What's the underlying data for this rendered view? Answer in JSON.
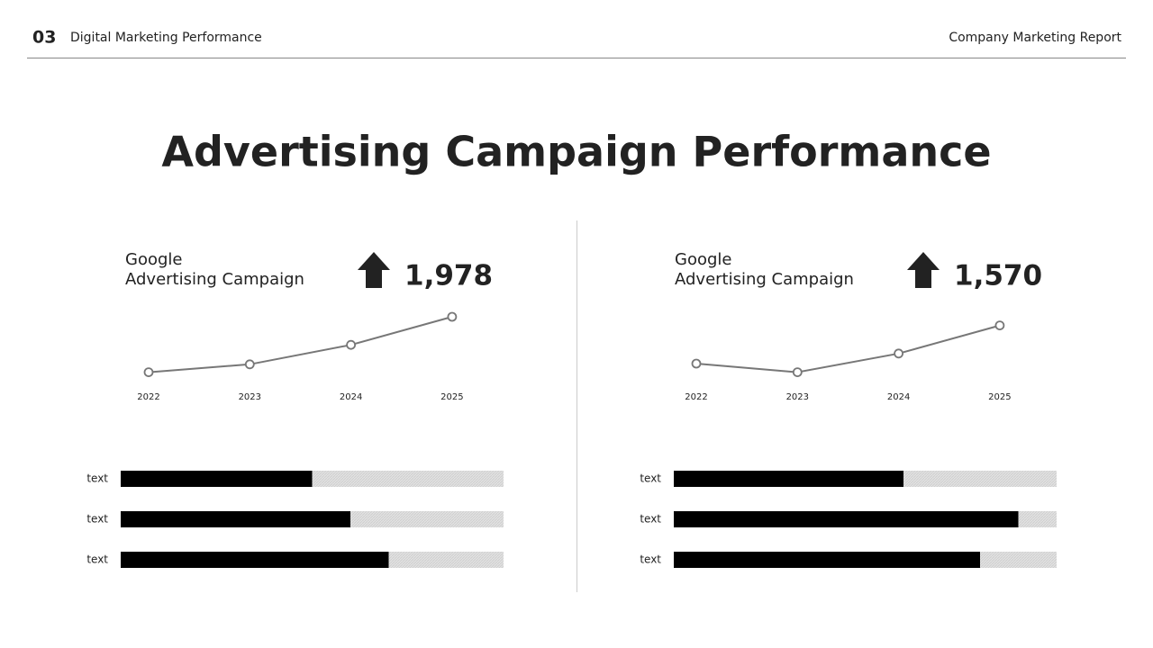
{
  "header": {
    "number": "03",
    "section": "Digital Marketing Performance",
    "report": "Company Marketing Report"
  },
  "title": "Advertising Campaign Performance",
  "panels": [
    {
      "label": [
        "Google",
        "Advertising Campaign"
      ],
      "kpi": "1,978"
    },
    {
      "label": [
        "Google",
        "Advertising Campaign"
      ],
      "kpi": "1,570"
    }
  ],
  "chart_data": [
    {
      "type": "line",
      "categories": [
        "2022",
        "2023",
        "2024",
        "2025"
      ],
      "values": [
        8,
        19,
        46,
        85
      ],
      "ylim": [
        0,
        100
      ],
      "color": "#777777"
    },
    {
      "type": "hbar",
      "categories": [
        "text",
        "text",
        "text"
      ],
      "values": [
        50,
        60,
        70
      ],
      "xlim": [
        0,
        100
      ],
      "color": "#000000"
    },
    {
      "type": "line",
      "categories": [
        "2022",
        "2023",
        "2024",
        "2025"
      ],
      "values": [
        20,
        8,
        34,
        73
      ],
      "ylim": [
        0,
        100
      ],
      "color": "#777777"
    },
    {
      "type": "hbar",
      "categories": [
        "text",
        "text",
        "text"
      ],
      "values": [
        60,
        90,
        80
      ],
      "xlim": [
        0,
        100
      ],
      "color": "#000000"
    }
  ]
}
